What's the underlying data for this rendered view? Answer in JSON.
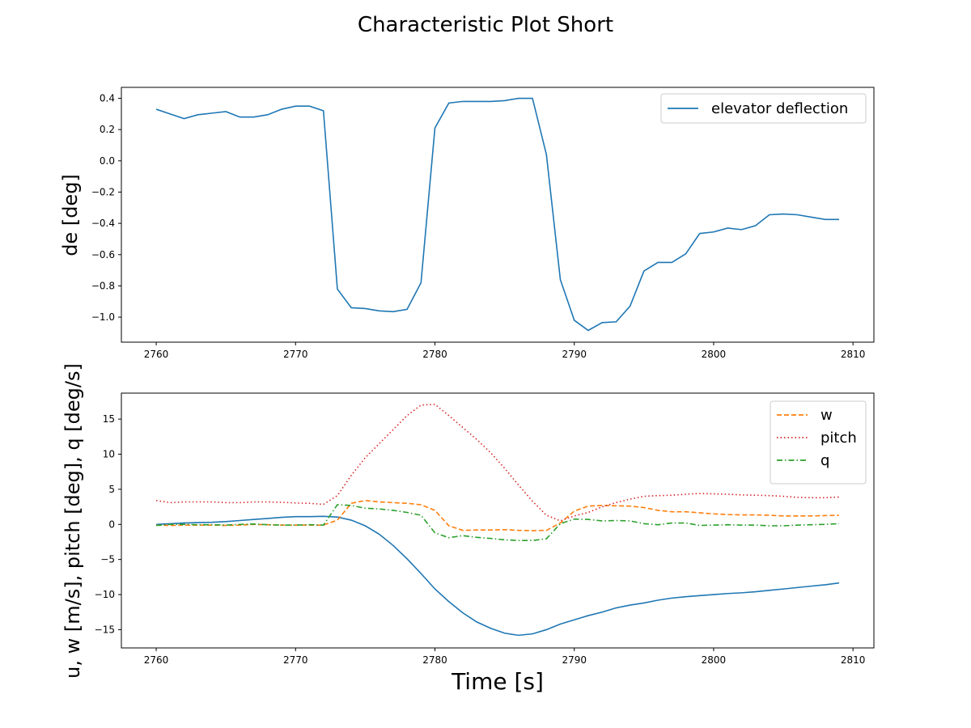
{
  "chart_data": [
    {
      "type": "line",
      "title": "Characteristic Plot Short",
      "xlabel": "",
      "ylabel": "de [deg]",
      "xlim": [
        2757.5,
        2811.5
      ],
      "ylim": [
        -1.16,
        0.47
      ],
      "xticks": [
        2760,
        2770,
        2780,
        2790,
        2800,
        2810
      ],
      "yticks": [
        0.4,
        0.2,
        0.0,
        -0.2,
        -0.4,
        -0.6,
        -0.8,
        -1.0
      ],
      "ytick_labels": [
        "0.4",
        "0.2",
        "0.0",
        "−0.2",
        "−0.4",
        "−0.6",
        "−0.8",
        "−1.0"
      ],
      "legend_position": "top-right",
      "x": [
        2760,
        2761,
        2762,
        2763,
        2764,
        2765,
        2766,
        2767,
        2768,
        2769,
        2770,
        2771,
        2772,
        2773,
        2774,
        2775,
        2776,
        2777,
        2778,
        2779,
        2780,
        2781,
        2782,
        2783,
        2784,
        2785,
        2786,
        2787,
        2788,
        2789,
        2790,
        2791,
        2792,
        2793,
        2794,
        2795,
        2796,
        2797,
        2798,
        2799,
        2800,
        2801,
        2802,
        2803,
        2804,
        2805,
        2806,
        2807,
        2808,
        2809
      ],
      "series": [
        {
          "name": "elevator deflection",
          "color": "#1f77b4",
          "style": "solid",
          "values": [
            0.33,
            0.3,
            0.27,
            0.295,
            0.305,
            0.315,
            0.28,
            0.28,
            0.295,
            0.33,
            0.35,
            0.35,
            0.32,
            -0.82,
            -0.94,
            -0.945,
            -0.96,
            -0.965,
            -0.95,
            -0.78,
            0.21,
            0.37,
            0.38,
            0.38,
            0.38,
            0.385,
            0.4,
            0.4,
            0.04,
            -0.76,
            -1.02,
            -1.085,
            -1.035,
            -1.03,
            -0.93,
            -0.705,
            -0.65,
            -0.65,
            -0.595,
            -0.465,
            -0.455,
            -0.43,
            -0.44,
            -0.415,
            -0.345,
            -0.34,
            -0.345,
            -0.36,
            -0.375,
            -0.375
          ]
        }
      ]
    },
    {
      "type": "line",
      "title": "",
      "xlabel": "Time [s]",
      "ylabel": "u, w [m/s], pitch [deg], q [deg/s]",
      "xlim": [
        2757.5,
        2811.5
      ],
      "ylim": [
        -17.6,
        18.7
      ],
      "xticks": [
        2760,
        2770,
        2780,
        2790,
        2800,
        2810
      ],
      "yticks": [
        15,
        10,
        5,
        0,
        -5,
        -10,
        -15
      ],
      "ytick_labels": [
        "15",
        "10",
        "5",
        "0",
        "−5",
        "−10",
        "−15"
      ],
      "legend_position": "top-right",
      "x": [
        2760,
        2761,
        2762,
        2763,
        2764,
        2765,
        2766,
        2767,
        2768,
        2769,
        2770,
        2771,
        2772,
        2773,
        2774,
        2775,
        2776,
        2777,
        2778,
        2779,
        2780,
        2781,
        2782,
        2783,
        2784,
        2785,
        2786,
        2787,
        2788,
        2789,
        2790,
        2791,
        2792,
        2793,
        2794,
        2795,
        2796,
        2797,
        2798,
        2799,
        2800,
        2801,
        2802,
        2803,
        2804,
        2805,
        2806,
        2807,
        2808,
        2809
      ],
      "series": [
        {
          "name": "",
          "color": "#1f77b4",
          "style": "solid",
          "legend": false,
          "values": [
            0,
            0.1,
            0.2,
            0.25,
            0.3,
            0.4,
            0.55,
            0.7,
            0.85,
            1.0,
            1.1,
            1.1,
            1.15,
            1.05,
            0.6,
            -0.2,
            -1.4,
            -3.0,
            -4.9,
            -7.0,
            -9.2,
            -11.0,
            -12.6,
            -13.9,
            -14.8,
            -15.5,
            -15.8,
            -15.6,
            -15.0,
            -14.2,
            -13.6,
            -13.0,
            -12.5,
            -11.9,
            -11.5,
            -11.2,
            -10.8,
            -10.5,
            -10.3,
            -10.15,
            -10.0,
            -9.85,
            -9.75,
            -9.6,
            -9.4,
            -9.2,
            -9.0,
            -8.8,
            -8.6,
            -8.35
          ]
        },
        {
          "name": "w",
          "color": "#ff7f0e",
          "style": "dashed",
          "legend": true,
          "values": [
            -0.1,
            -0.15,
            -0.1,
            -0.1,
            -0.1,
            -0.15,
            -0.1,
            0,
            -0.05,
            -0.1,
            -0.1,
            -0.1,
            -0.1,
            0.6,
            3.0,
            3.4,
            3.2,
            3.1,
            3.0,
            2.8,
            2.0,
            -0.2,
            -0.85,
            -0.8,
            -0.8,
            -0.75,
            -0.85,
            -0.9,
            -0.85,
            0.2,
            1.9,
            2.6,
            2.7,
            2.65,
            2.6,
            2.4,
            2.0,
            1.8,
            1.8,
            1.65,
            1.5,
            1.4,
            1.35,
            1.35,
            1.3,
            1.2,
            1.2,
            1.2,
            1.25,
            1.3
          ]
        },
        {
          "name": "pitch",
          "color": "#d62728",
          "style": "dotted",
          "legend": true,
          "values": [
            3.4,
            3.1,
            3.2,
            3.2,
            3.2,
            3.1,
            3.1,
            3.2,
            3.2,
            3.15,
            3.05,
            3.0,
            2.85,
            4.1,
            7.0,
            9.5,
            11.5,
            13.5,
            15.5,
            17.0,
            17.1,
            15.5,
            13.8,
            12.1,
            10.2,
            8.0,
            5.6,
            3.3,
            1.3,
            0.5,
            1.2,
            1.7,
            2.5,
            3.1,
            3.6,
            4.0,
            4.1,
            4.15,
            4.3,
            4.4,
            4.35,
            4.3,
            4.2,
            4.15,
            4.1,
            4.0,
            3.85,
            3.8,
            3.8,
            3.9
          ]
        },
        {
          "name": "q",
          "color": "#2ca02c",
          "style": "dashdot",
          "legend": true,
          "values": [
            -0.15,
            0,
            0,
            -0.05,
            -0.05,
            -0.1,
            0,
            0.05,
            -0.05,
            -0.1,
            -0.1,
            -0.05,
            -0.1,
            2.8,
            2.7,
            2.3,
            2.2,
            2.0,
            1.7,
            1.3,
            -1.2,
            -1.9,
            -1.6,
            -1.85,
            -2.0,
            -2.2,
            -2.3,
            -2.3,
            -2.05,
            0.1,
            0.75,
            0.7,
            0.5,
            0.55,
            0.5,
            0.1,
            -0.05,
            0.2,
            0.2,
            -0.15,
            -0.1,
            -0.05,
            -0.1,
            -0.1,
            -0.2,
            -0.2,
            -0.1,
            -0.05,
            0,
            0.1
          ]
        }
      ]
    }
  ]
}
